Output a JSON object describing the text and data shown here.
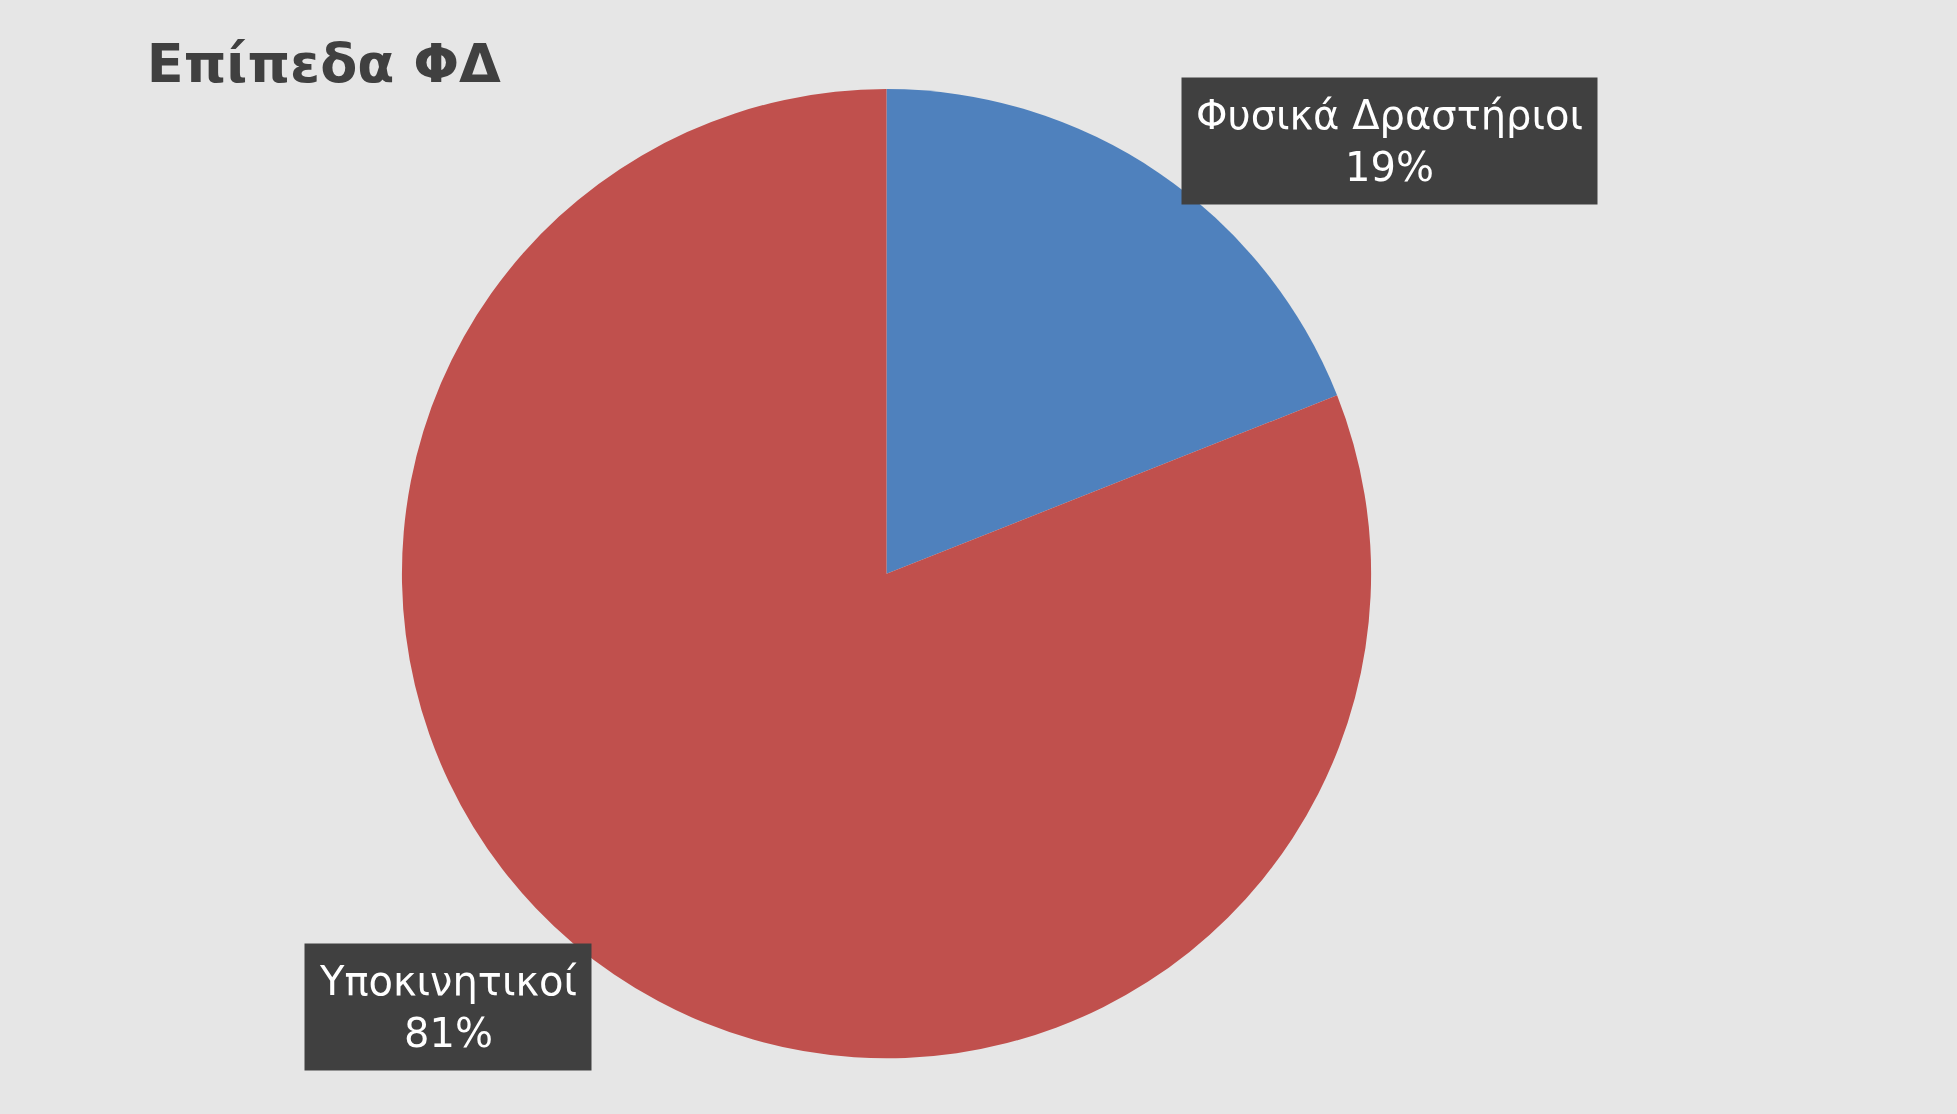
{
  "chart_data": {
    "type": "pie",
    "title": "Επίπεδα ΦΔ",
    "categories": [
      "Φυσικά Δραστήριοι",
      "Υποκινητικοί"
    ],
    "values": [
      19,
      81
    ],
    "colors": [
      "#4f81bd",
      "#c0504d"
    ],
    "value_labels": [
      "19%",
      "81%"
    ],
    "legend": false
  }
}
